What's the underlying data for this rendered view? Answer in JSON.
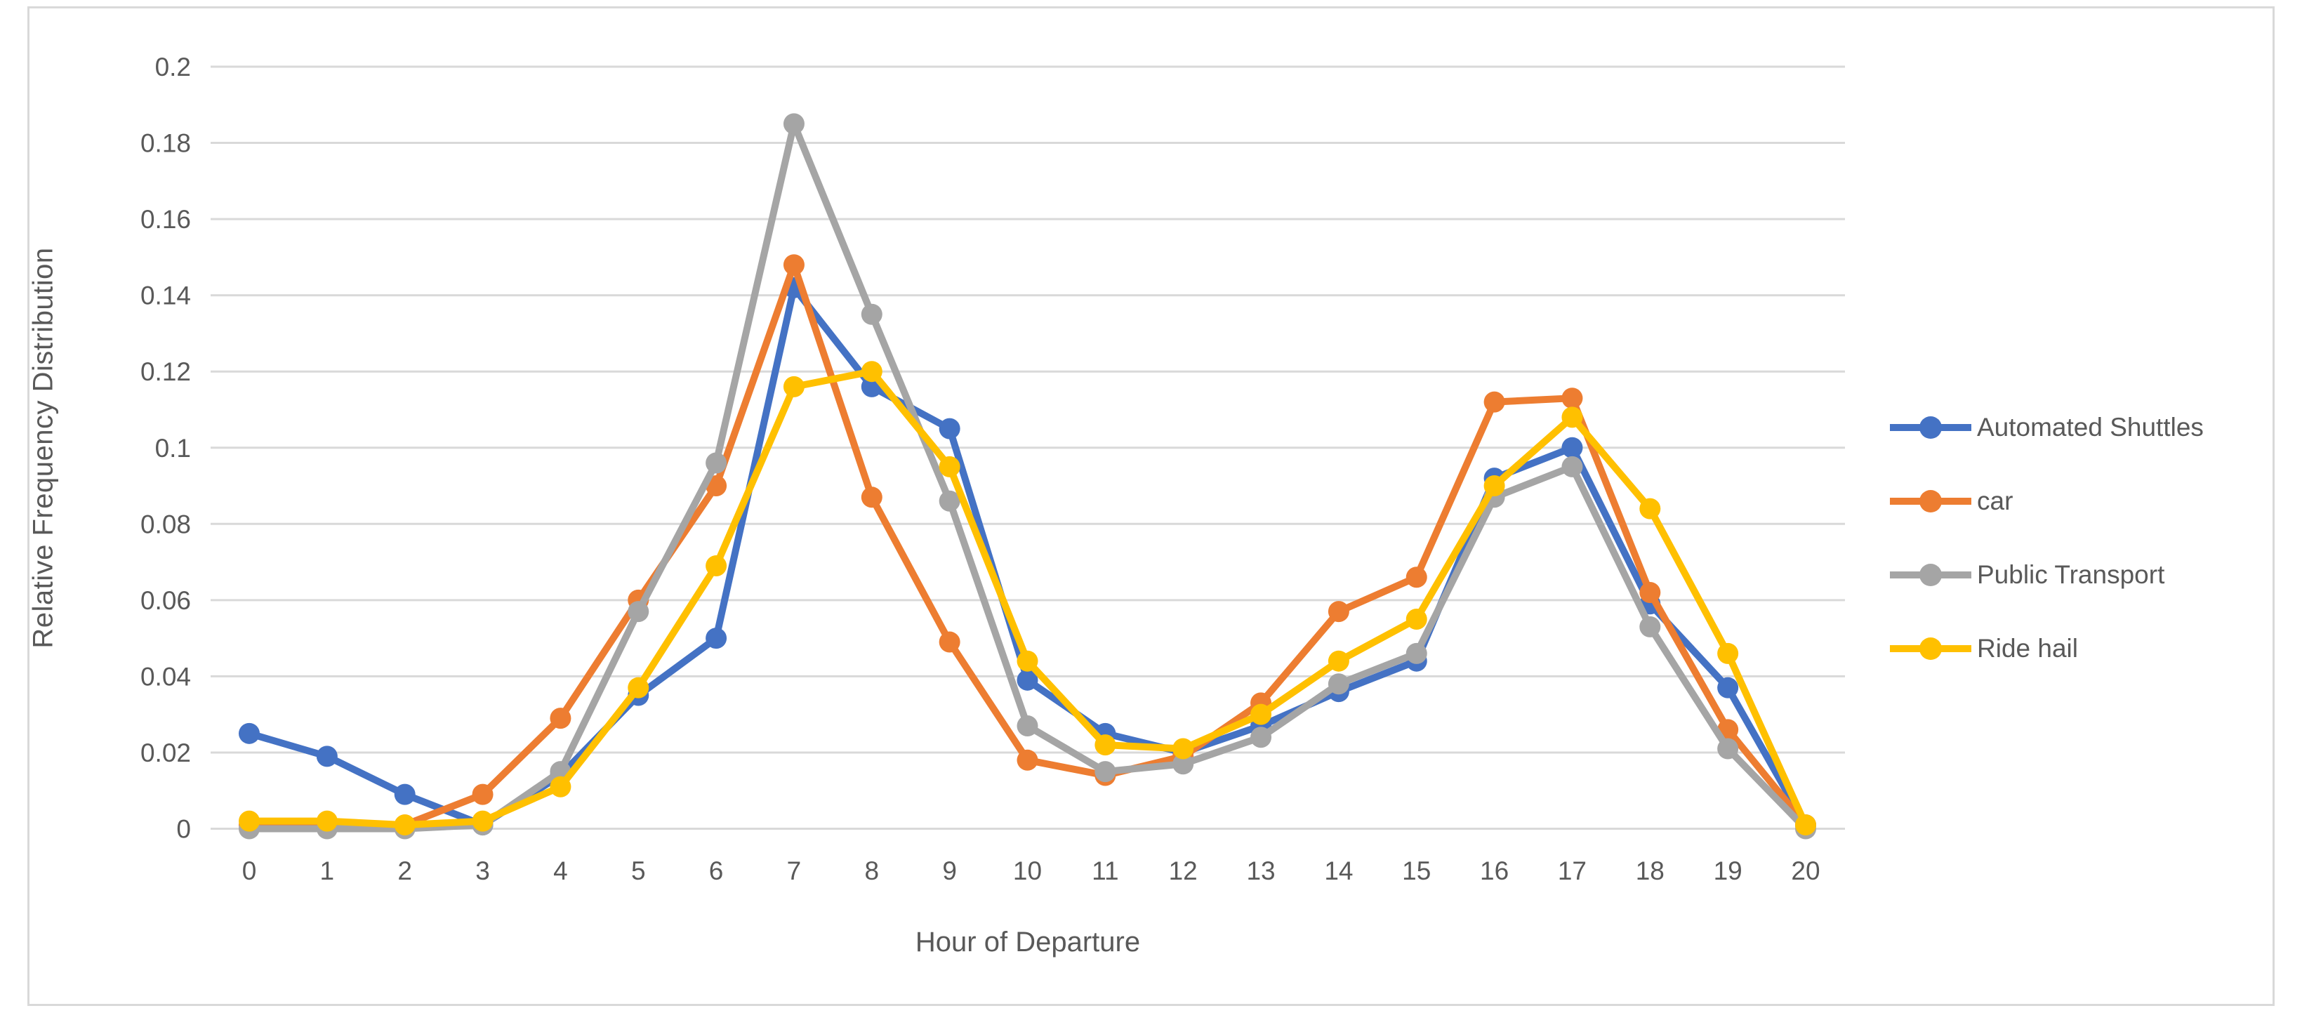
{
  "chart_data": {
    "type": "line",
    "title": "",
    "xlabel": "Hour of Departure",
    "ylabel": "Relative Frequency Distribution",
    "x": [
      0,
      1,
      2,
      3,
      4,
      5,
      6,
      7,
      8,
      9,
      10,
      11,
      12,
      13,
      14,
      15,
      16,
      17,
      18,
      19,
      20
    ],
    "xtick_labels": [
      "0",
      "1",
      "2",
      "3",
      "4",
      "5",
      "6",
      "7",
      "8",
      "9",
      "10",
      "11",
      "12",
      "13",
      "14",
      "15",
      "16",
      "17",
      "18",
      "19",
      "20"
    ],
    "ylim": [
      0,
      0.2
    ],
    "ytick_step": 0.02,
    "ytick_labels": [
      "0",
      "0.02",
      "0.04",
      "0.06",
      "0.08",
      "0.1",
      "0.12",
      "0.14",
      "0.16",
      "0.18",
      "0.2"
    ],
    "grid": true,
    "legend_position": "right",
    "colors": {
      "grid": "#D9D9D9",
      "axis_text": "#595959",
      "frame": "#D9D9D9"
    },
    "series": [
      {
        "name": "Automated Shuttles",
        "color": "#4472C4",
        "values": [
          0.025,
          0.019,
          0.009,
          0.001,
          0.014,
          0.035,
          0.05,
          0.142,
          0.116,
          0.105,
          0.039,
          0.025,
          0.02,
          0.027,
          0.036,
          0.044,
          0.092,
          0.1,
          0.059,
          0.037,
          0.001
        ]
      },
      {
        "name": "car",
        "color": "#ED7D31",
        "values": [
          0.001,
          0.001,
          0.001,
          0.009,
          0.029,
          0.06,
          0.09,
          0.148,
          0.087,
          0.049,
          0.018,
          0.014,
          0.019,
          0.033,
          0.057,
          0.066,
          0.112,
          0.113,
          0.062,
          0.026,
          0.001
        ]
      },
      {
        "name": "Public Transport",
        "color": "#A5A5A5",
        "values": [
          0.0,
          0.0,
          0.0,
          0.001,
          0.015,
          0.057,
          0.096,
          0.185,
          0.135,
          0.086,
          0.027,
          0.015,
          0.017,
          0.024,
          0.038,
          0.046,
          0.087,
          0.095,
          0.053,
          0.021,
          0.0
        ]
      },
      {
        "name": "Ride hail",
        "color": "#FFC000",
        "values": [
          0.002,
          0.002,
          0.001,
          0.002,
          0.011,
          0.037,
          0.069,
          0.116,
          0.12,
          0.095,
          0.044,
          0.022,
          0.021,
          0.03,
          0.044,
          0.055,
          0.09,
          0.108,
          0.084,
          0.046,
          0.001
        ]
      }
    ]
  }
}
